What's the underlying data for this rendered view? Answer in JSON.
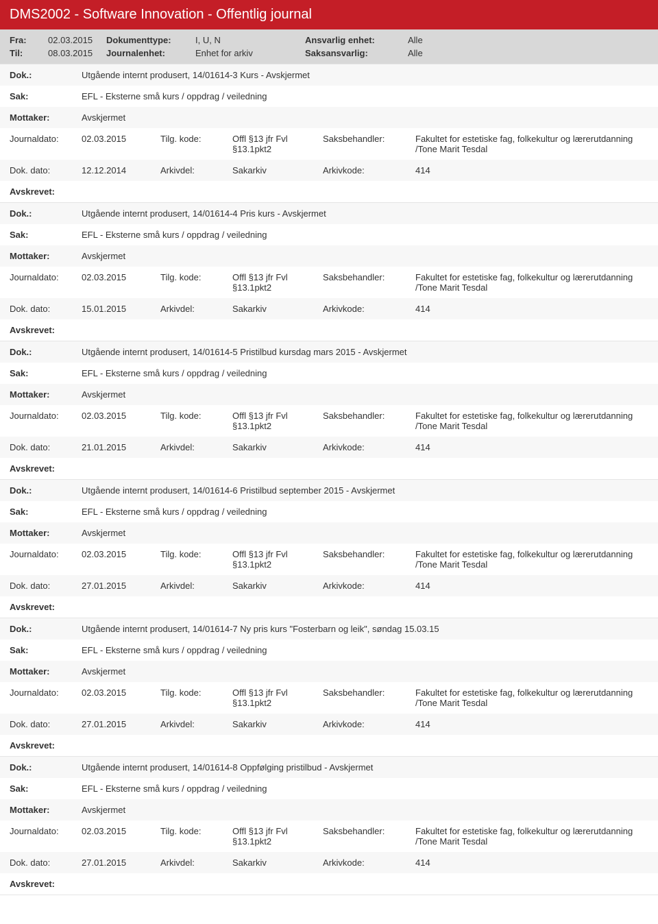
{
  "header": {
    "title": "DMS2002 - Software Innovation - Offentlig journal",
    "fra_label": "Fra:",
    "fra_value": "02.03.2015",
    "til_label": "Til:",
    "til_value": "08.03.2015",
    "doktype_label": "Dokumenttype:",
    "doktype_value": "I, U, N",
    "journalenhet_label": "Journalenhet:",
    "journalenhet_value": "Enhet for arkiv",
    "ansvarlig_label": "Ansvarlig enhet:",
    "ansvarlig_value": "Alle",
    "saksansvarlig_label": "Saksansvarlig:",
    "saksansvarlig_value": "Alle"
  },
  "labels": {
    "dok": "Dok.:",
    "sak": "Sak:",
    "mottaker": "Mottaker:",
    "journaldato": "Journaldato:",
    "tilg_kode": "Tilg. kode:",
    "saksbehandler": "Saksbehandler:",
    "dok_dato": "Dok. dato:",
    "arkivdel": "Arkivdel:",
    "arkivkode": "Arkivkode:",
    "avskrevet": "Avskrevet:"
  },
  "entries": [
    {
      "dok": "Utgående internt produsert, 14/01614-3 Kurs - Avskjermet",
      "sak": "EFL - Eksterne små kurs / oppdrag / veiledning",
      "mottaker": "Avskjermet",
      "journaldato": "02.03.2015",
      "tilg_kode": "Offl §13 jfr Fvl §13.1pkt2",
      "saksbehandler": "Fakultet for estetiske fag, folkekultur og lærerutdanning /Tone Marit Tesdal",
      "dok_dato": "12.12.2014",
      "arkivdel": "Sakarkiv",
      "arkivkode": "414"
    },
    {
      "dok": "Utgående internt produsert, 14/01614-4 Pris kurs - Avskjermet",
      "sak": "EFL - Eksterne små kurs / oppdrag / veiledning",
      "mottaker": "Avskjermet",
      "journaldato": "02.03.2015",
      "tilg_kode": "Offl §13 jfr Fvl §13.1pkt2",
      "saksbehandler": "Fakultet for estetiske fag, folkekultur og lærerutdanning /Tone Marit Tesdal",
      "dok_dato": "15.01.2015",
      "arkivdel": "Sakarkiv",
      "arkivkode": "414"
    },
    {
      "dok": "Utgående internt produsert, 14/01614-5 Pristilbud kursdag mars 2015 - Avskjermet",
      "sak": "EFL - Eksterne små kurs / oppdrag / veiledning",
      "mottaker": "Avskjermet",
      "journaldato": "02.03.2015",
      "tilg_kode": "Offl §13 jfr Fvl §13.1pkt2",
      "saksbehandler": "Fakultet for estetiske fag, folkekultur og lærerutdanning /Tone Marit Tesdal",
      "dok_dato": "21.01.2015",
      "arkivdel": "Sakarkiv",
      "arkivkode": "414"
    },
    {
      "dok": "Utgående internt produsert, 14/01614-6 Pristilbud september 2015 - Avskjermet",
      "sak": "EFL - Eksterne små kurs / oppdrag / veiledning",
      "mottaker": "Avskjermet",
      "journaldato": "02.03.2015",
      "tilg_kode": "Offl §13 jfr Fvl §13.1pkt2",
      "saksbehandler": "Fakultet for estetiske fag, folkekultur og lærerutdanning /Tone Marit Tesdal",
      "dok_dato": "27.01.2015",
      "arkivdel": "Sakarkiv",
      "arkivkode": "414"
    },
    {
      "dok": "Utgående internt produsert, 14/01614-7 Ny pris kurs \"Fosterbarn og leik\", søndag 15.03.15",
      "sak": "EFL - Eksterne små kurs / oppdrag / veiledning",
      "mottaker": "Avskjermet",
      "journaldato": "02.03.2015",
      "tilg_kode": "Offl §13 jfr Fvl §13.1pkt2",
      "saksbehandler": "Fakultet for estetiske fag, folkekultur og lærerutdanning /Tone Marit Tesdal",
      "dok_dato": "27.01.2015",
      "arkivdel": "Sakarkiv",
      "arkivkode": "414"
    },
    {
      "dok": "Utgående internt produsert, 14/01614-8 Oppfølging pristilbud - Avskjermet",
      "sak": "EFL - Eksterne små kurs / oppdrag / veiledning",
      "mottaker": "Avskjermet",
      "journaldato": "02.03.2015",
      "tilg_kode": "Offl §13 jfr Fvl §13.1pkt2",
      "saksbehandler": "Fakultet for estetiske fag, folkekultur og lærerutdanning /Tone Marit Tesdal",
      "dok_dato": "27.01.2015",
      "arkivdel": "Sakarkiv",
      "arkivkode": "414"
    }
  ]
}
